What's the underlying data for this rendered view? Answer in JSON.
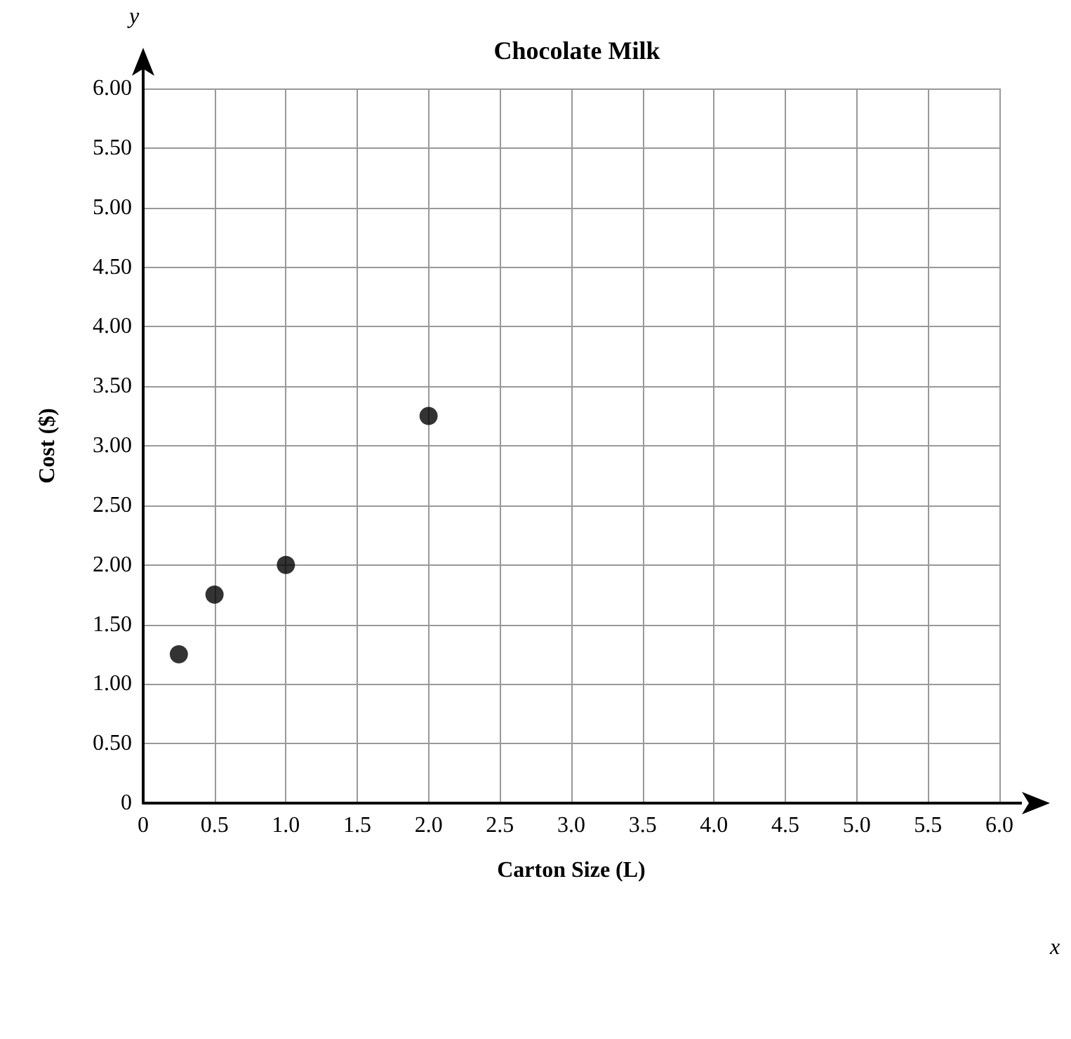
{
  "chart_data": {
    "type": "scatter",
    "title": "Chocolate Milk",
    "xlabel": "Carton Size (L)",
    "ylabel": "Cost ($)",
    "annotations": [
      "x",
      "y"
    ],
    "x": [
      0.25,
      0.5,
      1,
      2
    ],
    "series": [
      {
        "color": "#000000",
        "values": [
          1.25,
          1.75,
          2,
          3.25
        ]
      }
    ],
    "xlim": [
      0,
      6
    ],
    "xticks": [
      0,
      0.5,
      {
        "value": 1,
        "label": "1.0"
      },
      1.5,
      {
        "value": 2,
        "label": "2.0"
      },
      2.5,
      {
        "value": 3,
        "label": "3.0"
      },
      3.5,
      {
        "value": 4,
        "label": "4.0"
      },
      4.5,
      {
        "value": 5,
        "label": "5.0"
      },
      5.5,
      {
        "value": 6,
        "label": "6.0"
      }
    ],
    "ylim": [
      0,
      6
    ],
    "yticks": [
      0,
      {
        "value": 0.5,
        "label": "0.50"
      },
      {
        "value": 1,
        "label": "1.00"
      },
      {
        "value": 1.5,
        "label": "1.50"
      },
      {
        "value": 2,
        "label": "2.00"
      },
      {
        "value": 2.5,
        "label": "2.50"
      },
      {
        "value": 3,
        "label": "3.00"
      },
      {
        "value": 3.5,
        "label": "3.50"
      },
      {
        "value": 4,
        "label": "4.00"
      },
      {
        "value": 4.5,
        "label": "4.50"
      },
      {
        "value": 5,
        "label": "5.00"
      },
      {
        "value": 5.5,
        "label": "5.50"
      },
      {
        "value": 6,
        "label": "6.00"
      }
    ],
    "grid": true,
    "marker": "circle"
  }
}
